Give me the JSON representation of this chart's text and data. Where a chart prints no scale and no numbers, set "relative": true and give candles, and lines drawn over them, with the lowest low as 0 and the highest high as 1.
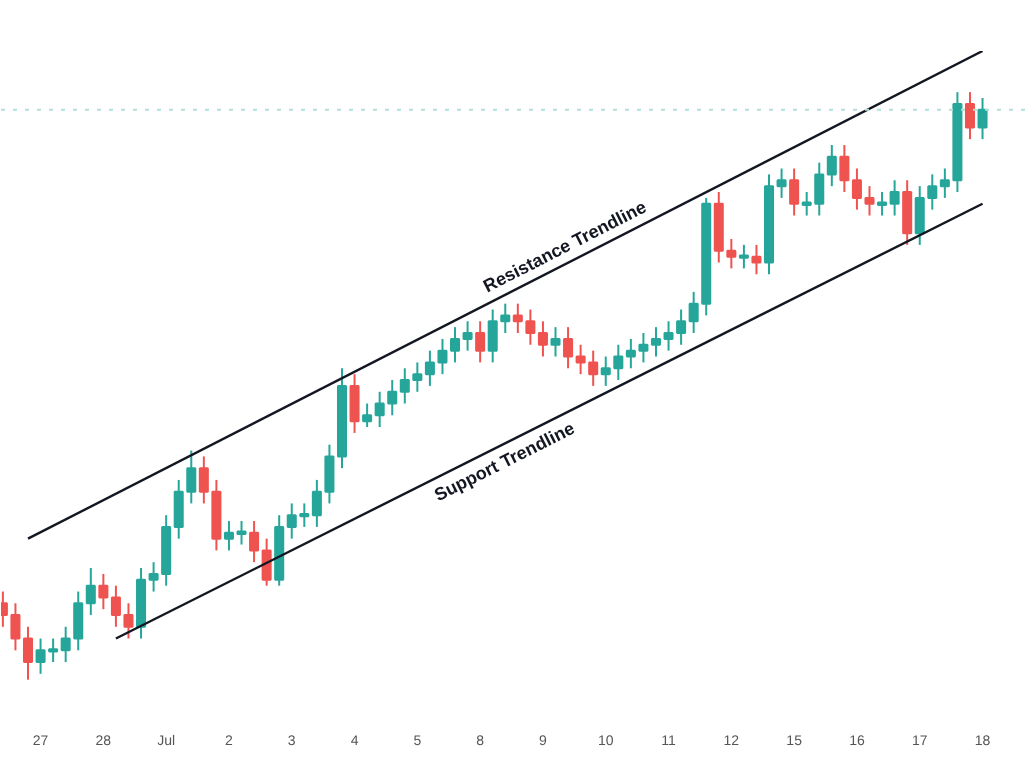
{
  "chart_data": {
    "type": "candlestick",
    "relative": true,
    "colors": [
      "#ef5350",
      "#ef5350",
      "#ef5350",
      "#26a69a",
      "#26a69a",
      "#26a69a",
      "#26a69a",
      "#26a69a",
      "#ef5350",
      "#ef5350",
      "#ef5350",
      "#26a69a",
      "#26a69a",
      "#26a69a",
      "#26a69a",
      "#26a69a",
      "#ef5350",
      "#ef5350",
      "#26a69a",
      "#26a69a",
      "#ef5350",
      "#ef5350",
      "#26a69a",
      "#26a69a",
      "#26a69a",
      "#26a69a",
      "#26a69a",
      "#26a69a",
      "#ef5350",
      "#26a69a",
      "#26a69a",
      "#26a69a",
      "#26a69a",
      "#26a69a",
      "#26a69a",
      "#26a69a",
      "#26a69a",
      "#26a69a",
      "#ef5350",
      "#26a69a",
      "#26a69a",
      "#ef5350",
      "#ef5350",
      "#ef5350",
      "#26a69a",
      "#ef5350",
      "#ef5350",
      "#ef5350",
      "#26a69a",
      "#26a69a",
      "#26a69a",
      "#26a69a",
      "#26a69a",
      "#26a69a",
      "#26a69a",
      "#26a69a",
      "#26a69a",
      "#ef5350",
      "#ef5350",
      "#26a69a",
      "#ef5350",
      "#26a69a",
      "#26a69a",
      "#ef5350",
      "#26a69a",
      "#26a69a",
      "#26a69a",
      "#ef5350",
      "#ef5350",
      "#ef5350",
      "#26a69a",
      "#26a69a",
      "#ef5350",
      "#26a69a",
      "#26a69a",
      "#26a69a",
      "#26a69a",
      "#ef5350",
      "#26a69a"
    ],
    "categories": [
      null,
      null,
      null,
      "27",
      null,
      null,
      null,
      null,
      "28",
      null,
      null,
      null,
      null,
      "Jul",
      null,
      null,
      null,
      null,
      "2",
      null,
      null,
      null,
      null,
      "3",
      null,
      null,
      null,
      null,
      "4",
      null,
      null,
      null,
      null,
      "5",
      null,
      null,
      null,
      null,
      "8",
      null,
      null,
      null,
      null,
      "9",
      null,
      null,
      null,
      null,
      "10",
      null,
      null,
      null,
      null,
      "11",
      null,
      null,
      null,
      null,
      "12",
      null,
      null,
      null,
      null,
      "15",
      null,
      null,
      null,
      null,
      "16",
      null,
      null,
      null,
      null,
      "17",
      null,
      null,
      null,
      null,
      "18"
    ],
    "ohlc": [
      [
        0.13,
        0.15,
        0.09,
        0.11
      ],
      [
        0.11,
        0.13,
        0.05,
        0.07
      ],
      [
        0.07,
        0.09,
        0.0,
        0.03
      ],
      [
        0.03,
        0.07,
        0.01,
        0.05
      ],
      [
        0.05,
        0.07,
        0.03,
        0.05
      ],
      [
        0.05,
        0.09,
        0.03,
        0.07
      ],
      [
        0.07,
        0.15,
        0.05,
        0.13
      ],
      [
        0.13,
        0.19,
        0.11,
        0.16
      ],
      [
        0.16,
        0.18,
        0.12,
        0.14
      ],
      [
        0.14,
        0.16,
        0.09,
        0.11
      ],
      [
        0.11,
        0.13,
        0.07,
        0.09
      ],
      [
        0.09,
        0.19,
        0.07,
        0.17
      ],
      [
        0.17,
        0.2,
        0.15,
        0.18
      ],
      [
        0.18,
        0.28,
        0.16,
        0.26
      ],
      [
        0.26,
        0.34,
        0.24,
        0.32
      ],
      [
        0.32,
        0.39,
        0.3,
        0.36
      ],
      [
        0.36,
        0.38,
        0.3,
        0.32
      ],
      [
        0.32,
        0.34,
        0.22,
        0.24
      ],
      [
        0.24,
        0.27,
        0.22,
        0.25
      ],
      [
        0.25,
        0.27,
        0.23,
        0.25
      ],
      [
        0.25,
        0.27,
        0.2,
        0.22
      ],
      [
        0.22,
        0.24,
        0.16,
        0.17
      ],
      [
        0.17,
        0.28,
        0.16,
        0.26
      ],
      [
        0.26,
        0.3,
        0.24,
        0.28
      ],
      [
        0.28,
        0.3,
        0.26,
        0.28
      ],
      [
        0.28,
        0.34,
        0.26,
        0.32
      ],
      [
        0.32,
        0.4,
        0.3,
        0.38
      ],
      [
        0.38,
        0.53,
        0.36,
        0.5
      ],
      [
        0.5,
        0.52,
        0.42,
        0.44
      ],
      [
        0.44,
        0.47,
        0.43,
        0.45
      ],
      [
        0.45,
        0.49,
        0.43,
        0.47
      ],
      [
        0.47,
        0.51,
        0.45,
        0.49
      ],
      [
        0.49,
        0.53,
        0.47,
        0.51
      ],
      [
        0.51,
        0.54,
        0.49,
        0.52
      ],
      [
        0.52,
        0.56,
        0.5,
        0.54
      ],
      [
        0.54,
        0.58,
        0.52,
        0.56
      ],
      [
        0.56,
        0.6,
        0.54,
        0.58
      ],
      [
        0.58,
        0.61,
        0.56,
        0.59
      ],
      [
        0.59,
        0.61,
        0.54,
        0.56
      ],
      [
        0.56,
        0.63,
        0.54,
        0.61
      ],
      [
        0.61,
        0.64,
        0.59,
        0.62
      ],
      [
        0.62,
        0.64,
        0.59,
        0.61
      ],
      [
        0.61,
        0.63,
        0.57,
        0.59
      ],
      [
        0.59,
        0.61,
        0.55,
        0.57
      ],
      [
        0.57,
        0.6,
        0.55,
        0.58
      ],
      [
        0.58,
        0.6,
        0.53,
        0.55
      ],
      [
        0.55,
        0.57,
        0.52,
        0.54
      ],
      [
        0.54,
        0.56,
        0.5,
        0.52
      ],
      [
        0.52,
        0.55,
        0.5,
        0.53
      ],
      [
        0.53,
        0.57,
        0.51,
        0.55
      ],
      [
        0.55,
        0.58,
        0.53,
        0.56
      ],
      [
        0.56,
        0.59,
        0.54,
        0.57
      ],
      [
        0.57,
        0.6,
        0.55,
        0.58
      ],
      [
        0.58,
        0.61,
        0.56,
        0.59
      ],
      [
        0.59,
        0.63,
        0.57,
        0.61
      ],
      [
        0.61,
        0.66,
        0.59,
        0.64
      ],
      [
        0.64,
        0.82,
        0.62,
        0.81
      ],
      [
        0.81,
        0.83,
        0.71,
        0.73
      ],
      [
        0.73,
        0.75,
        0.7,
        0.72
      ],
      [
        0.72,
        0.74,
        0.7,
        0.72
      ],
      [
        0.72,
        0.74,
        0.69,
        0.71
      ],
      [
        0.71,
        0.86,
        0.69,
        0.84
      ],
      [
        0.84,
        0.87,
        0.82,
        0.85
      ],
      [
        0.85,
        0.87,
        0.79,
        0.81
      ],
      [
        0.81,
        0.83,
        0.79,
        0.81
      ],
      [
        0.81,
        0.88,
        0.79,
        0.86
      ],
      [
        0.86,
        0.91,
        0.84,
        0.89
      ],
      [
        0.89,
        0.91,
        0.83,
        0.85
      ],
      [
        0.85,
        0.87,
        0.8,
        0.82
      ],
      [
        0.82,
        0.84,
        0.79,
        0.81
      ],
      [
        0.81,
        0.83,
        0.79,
        0.81
      ],
      [
        0.81,
        0.85,
        0.79,
        0.83
      ],
      [
        0.83,
        0.85,
        0.74,
        0.76
      ],
      [
        0.76,
        0.84,
        0.74,
        0.82
      ],
      [
        0.82,
        0.86,
        0.8,
        0.84
      ],
      [
        0.84,
        0.87,
        0.82,
        0.85
      ],
      [
        0.85,
        1.0,
        0.83,
        0.98
      ],
      [
        0.98,
        1.0,
        0.92,
        0.94
      ],
      [
        0.94,
        0.99,
        0.92,
        0.97
      ]
    ],
    "series": [
      {
        "type": "line",
        "color": "#131722",
        "values": [
          null,
          null,
          0.24,
          null,
          null,
          null,
          null,
          null,
          null,
          null,
          null,
          null,
          null,
          null,
          null,
          null,
          null,
          null,
          null,
          null,
          null,
          null,
          null,
          null,
          null,
          null,
          null,
          null,
          null,
          null,
          null,
          null,
          null,
          null,
          null,
          null,
          null,
          null,
          null,
          null,
          null,
          null,
          null,
          null,
          null,
          null,
          null,
          null,
          null,
          null,
          null,
          null,
          null,
          null,
          null,
          null,
          null,
          null,
          null,
          null,
          null,
          null,
          null,
          null,
          null,
          null,
          null,
          null,
          null,
          null,
          null,
          null,
          null,
          null,
          null,
          null,
          null,
          null,
          1.07
        ]
      },
      {
        "type": "line",
        "color": "#131722",
        "values": [
          null,
          null,
          null,
          null,
          null,
          null,
          null,
          null,
          null,
          0.07,
          null,
          null,
          null,
          null,
          null,
          null,
          null,
          null,
          null,
          null,
          null,
          null,
          null,
          null,
          null,
          null,
          null,
          null,
          null,
          null,
          null,
          null,
          null,
          null,
          null,
          null,
          null,
          null,
          null,
          null,
          null,
          null,
          null,
          null,
          null,
          null,
          null,
          null,
          null,
          null,
          null,
          null,
          null,
          null,
          null,
          null,
          null,
          null,
          null,
          null,
          null,
          null,
          null,
          null,
          null,
          null,
          null,
          null,
          null,
          null,
          null,
          null,
          null,
          null,
          null,
          null,
          null,
          null,
          0.81
        ]
      }
    ],
    "ref_lines": [
      {
        "axis": "y",
        "value": 0.97,
        "color": "#b2dfdb",
        "line_style": "dotted"
      }
    ],
    "annotations": [
      "Resistance Trendline",
      "Support Trendline"
    ],
    "tick_labels": "x",
    "grid": false
  }
}
